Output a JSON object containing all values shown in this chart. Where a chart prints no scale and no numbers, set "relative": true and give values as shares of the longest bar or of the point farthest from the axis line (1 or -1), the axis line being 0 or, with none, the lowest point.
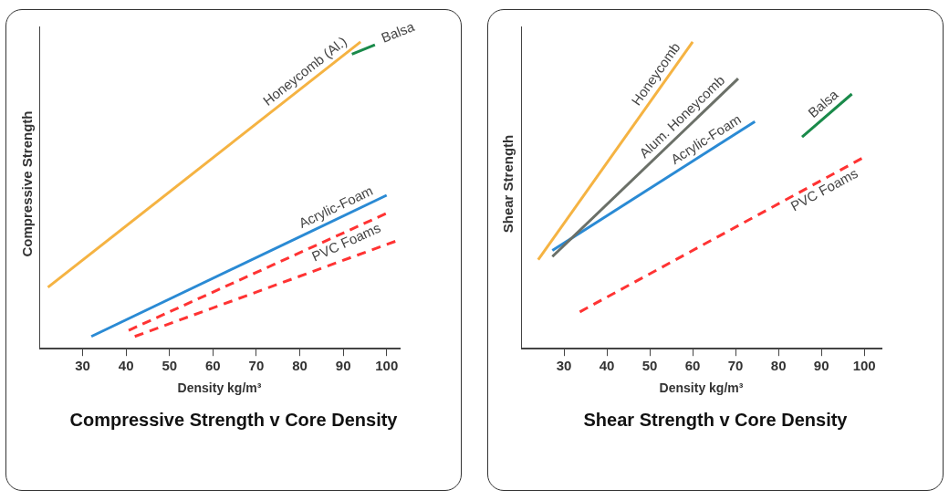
{
  "chart_data": [
    {
      "type": "line",
      "title": "Compressive Strength v Core Density",
      "xlabel": "Density kg/m³",
      "ylabel": "Compressive Strength",
      "relative": true,
      "xlim": [
        20,
        103
      ],
      "xticks": [
        30,
        40,
        50,
        60,
        70,
        80,
        90,
        100
      ],
      "series": [
        {
          "name": "Honeycomb (Al.)",
          "color": "#f5b342",
          "x": [
            22,
            94
          ],
          "values": [
            0.2,
            1
          ]
        },
        {
          "name": "Balsa",
          "color": "#1a8a4a",
          "x": [
            92,
            97.3
          ],
          "values": [
            0.96,
            0.99
          ]
        },
        {
          "name": "Acrylic-Foam",
          "color": "#2a8ad4",
          "x": [
            32,
            100
          ],
          "values": [
            0.04,
            0.5
          ]
        },
        {
          "name": "PVC Foams",
          "color": "#ff3333",
          "line_style": "dashed",
          "x": [
            40.6,
            99.8
          ],
          "values": [
            0.06,
            0.44
          ]
        },
        {
          "color": "#ff3333",
          "line_style": "dashed",
          "x": [
            42,
            102
          ],
          "values": [
            0.04,
            0.35
          ]
        }
      ]
    },
    {
      "type": "line",
      "title": "Shear Strength v Core Density",
      "xlabel": "Density kg/m³",
      "ylabel": "Shear Strength",
      "relative": true,
      "xlim": [
        20,
        104
      ],
      "xticks": [
        30,
        40,
        50,
        60,
        70,
        80,
        90,
        100
      ],
      "series": [
        {
          "name": "Honeycomb",
          "color": "#f5b342",
          "x": [
            24,
            60
          ],
          "values": [
            0.29,
            1
          ]
        },
        {
          "name": "Alum. Honeycomb",
          "color": "#6b7068",
          "x": [
            27.3,
            70.6
          ],
          "values": [
            0.3,
            0.88
          ]
        },
        {
          "name": "Acrylic-Foam",
          "color": "#2a8ad4",
          "x": [
            27.3,
            74.5
          ],
          "values": [
            0.32,
            0.74
          ]
        },
        {
          "name": "Balsa",
          "color": "#1a8a4a",
          "x": [
            85.5,
            97.1
          ],
          "values": [
            0.69,
            0.83
          ]
        },
        {
          "name": "PVC Foams",
          "color": "#ff3333",
          "line_style": "dashed",
          "x": [
            33.7,
            99.4
          ],
          "values": [
            0.12,
            0.62
          ]
        }
      ]
    }
  ]
}
